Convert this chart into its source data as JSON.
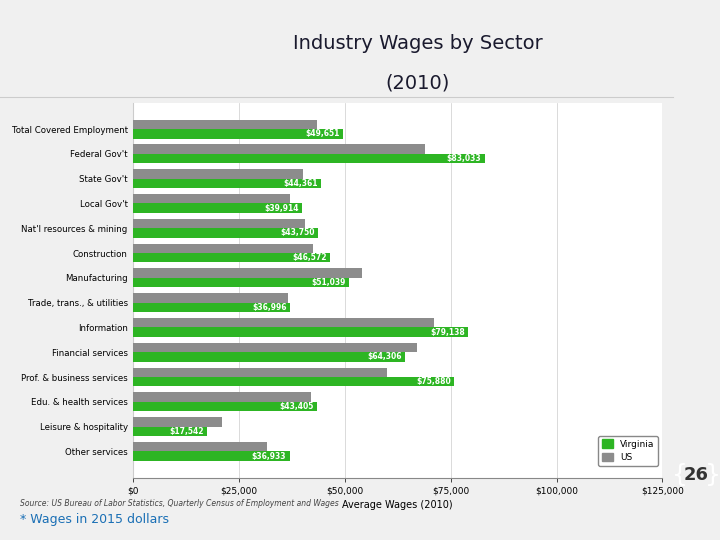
{
  "title_line1": "Industry Wages by Sector",
  "title_line2": "(2010)",
  "categories": [
    "Total Covered Employment",
    "Federal Gov't",
    "State Gov't",
    "Local Gov't",
    "Nat'l resources & mining",
    "Construction",
    "Manufacturing",
    "Trade, trans., & utilities",
    "Information",
    "Financial services",
    "Prof. & business services",
    "Edu. & health services",
    "Leisure & hospitality",
    "Other services"
  ],
  "virginia_values": [
    49651,
    83033,
    44361,
    39914,
    43750,
    46572,
    51039,
    36996,
    79138,
    64306,
    75880,
    43405,
    17542,
    36933
  ],
  "us_values": [
    43500,
    69000,
    40000,
    37000,
    40500,
    42500,
    54000,
    36500,
    71000,
    67000,
    60000,
    42000,
    21000,
    31500
  ],
  "virginia_color": "#2db523",
  "us_color": "#8c8c8c",
  "xlabel": "Average Wages (2010)",
  "source": "Source: US Bureau of Labor Statistics, Quarterly Census of Employment and Wages",
  "xlim": [
    0,
    125000
  ],
  "xticks": [
    0,
    25000,
    50000,
    75000,
    100000,
    125000
  ],
  "xtick_labels": [
    "$0",
    "$25,000",
    "$50,000",
    "$75,000",
    "$100,000",
    "$125,000"
  ],
  "slide_bg": "#f0f0f0",
  "chart_bg": "#ffffff",
  "header_bg": "#ffffff",
  "green_sidebar_color": "#3cb52e",
  "badge_number": "26",
  "footer_text": "* Wages in 2015 dollars",
  "legend_labels": [
    "Virginia",
    "US"
  ],
  "bar_height": 0.38
}
